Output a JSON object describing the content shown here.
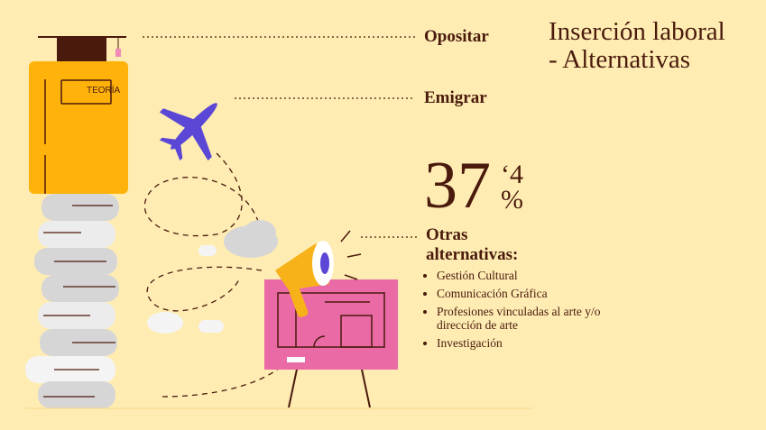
{
  "title_line1": "Inserción laboral",
  "title_line2": "- Alternativas",
  "labels": {
    "opositar": "Opositar",
    "emigrar": "Emigrar"
  },
  "book_label": "TEORÍA",
  "stat": {
    "integer": "37",
    "decimal": "‘4",
    "unit": "%"
  },
  "otras": {
    "line1": "Otras",
    "line2": "alternativas:"
  },
  "items": [
    "Gestión Cultural",
    "Comunicación Gráfica",
    "Profesiones vinculadas al arte y/o dirección de arte",
    "Investigación"
  ],
  "colors": {
    "background": "#feecb3",
    "text": "#4a1a0c",
    "book": "#ffb30a",
    "plane": "#5b47d6",
    "board": "#ea6aa6",
    "megaphone": "#f7b21a"
  }
}
